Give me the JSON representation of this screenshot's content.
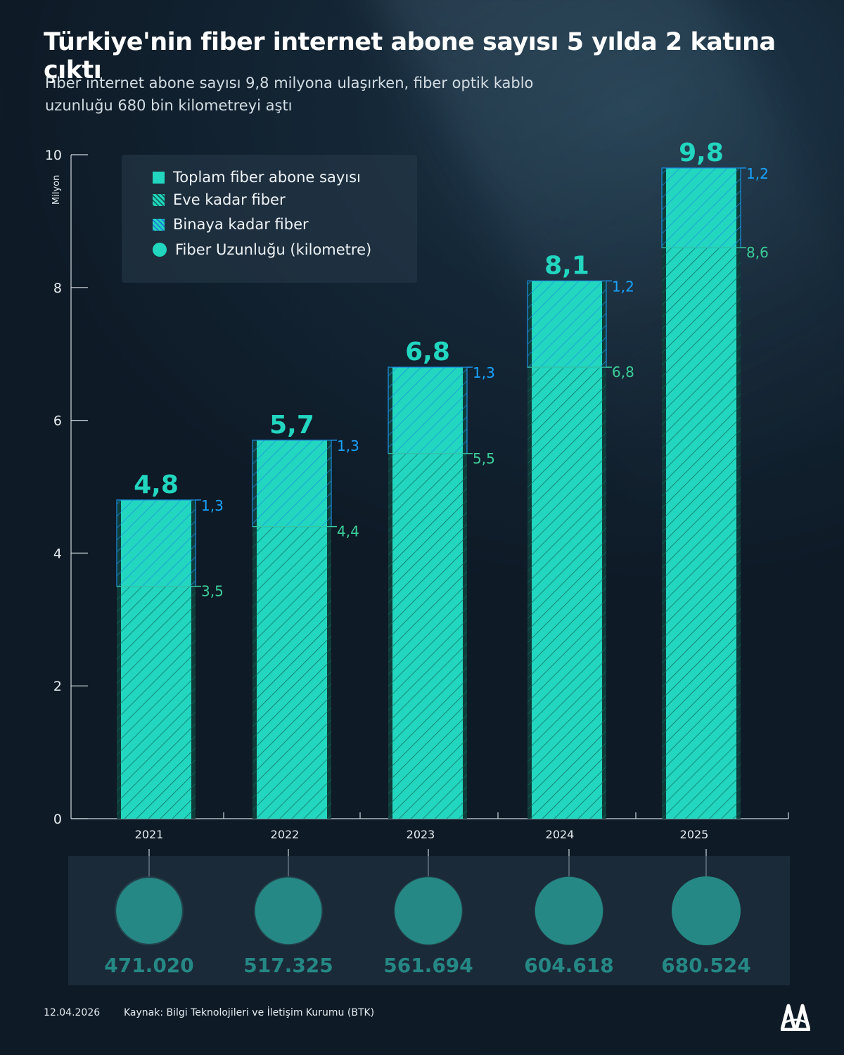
{
  "title": "Türkiye'nin fiber internet abone sayısı 5 yılda 2 katına çıktı",
  "subtitle": "Fiber internet abone sayısı 9,8 milyona ulaşırken, fiber optik kablo uzunluğu 680 bin kilometreyi aştı",
  "legend": {
    "total": "Toplam fiber abone sayısı",
    "home": "Eve kadar fiber",
    "building": "Binaya kadar fiber",
    "length": "Fiber Uzunluğu  (kilometre)"
  },
  "footer": {
    "date": "12.04.2026",
    "source": "Kaynak: Bilgi Teknolojileri ve İletişim Kurumu (BTK)"
  },
  "colors": {
    "accent": "#22d6bf",
    "home_hatch": "#0f6a5c",
    "building": "#1aa3ff",
    "home_label": "#3ccf9a"
  },
  "chart_data": {
    "type": "bar",
    "stacked": true,
    "ylabel": "Milyon",
    "ylim": [
      0,
      10
    ],
    "yticks": [
      0,
      2,
      4,
      6,
      8,
      10
    ],
    "categories": [
      "2021",
      "2022",
      "2023",
      "2024",
      "2025"
    ],
    "totals": [
      4.8,
      5.7,
      6.8,
      8.1,
      9.8
    ],
    "total_labels": [
      "4,8",
      "5,7",
      "6,8",
      "8,1",
      "9,8"
    ],
    "series": [
      {
        "name": "Eve kadar fiber",
        "values": [
          3.5,
          4.4,
          5.5,
          6.8,
          8.6
        ],
        "labels": [
          "3,5",
          "4,4",
          "5,5",
          "6,8",
          "8,6"
        ]
      },
      {
        "name": "Binaya kadar fiber",
        "values": [
          1.3,
          1.3,
          1.3,
          1.2,
          1.2
        ],
        "labels": [
          "1,3",
          "1,3",
          "1,3",
          "1,2",
          "1,2"
        ]
      }
    ],
    "fiber_length_km": [
      471020,
      517325,
      561694,
      604618,
      680524
    ],
    "fiber_length_labels": [
      "471.020",
      "517.325",
      "561.694",
      "604.618",
      "680.524"
    ]
  }
}
